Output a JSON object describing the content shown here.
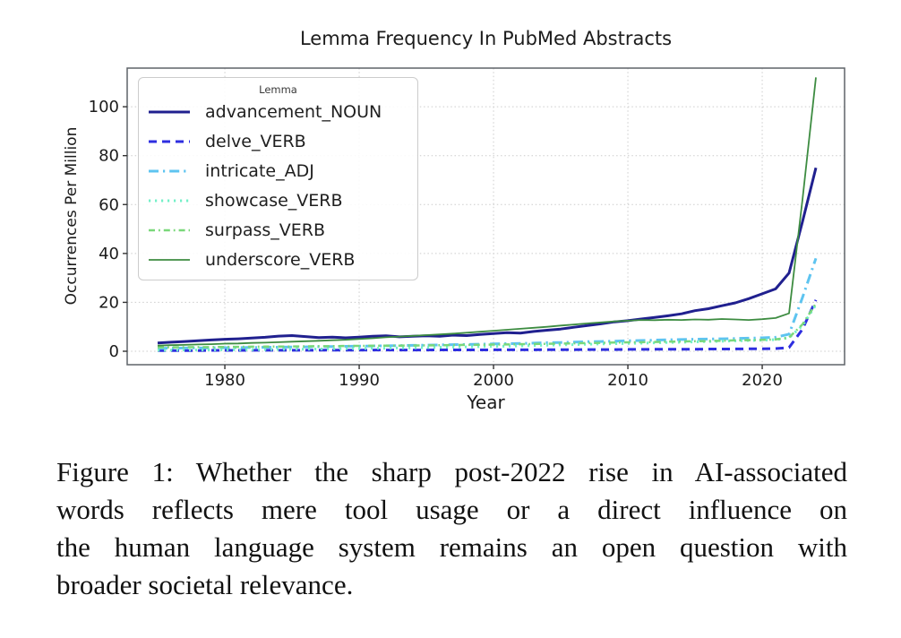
{
  "figure": {
    "caption_lines": [
      "Figure 1: Whether the sharp post-2022 rise in AI-associated",
      "words reflects mere tool usage or a direct influence on",
      "the human language system remains an open question with",
      "broader societal relevance."
    ]
  },
  "chart_data": {
    "type": "line",
    "title": "Lemma Frequency In PubMed Abstracts",
    "xlabel": "Year",
    "ylabel": "Occurrences Per Million",
    "legend_title": "Lemma",
    "legend_position": "upper left",
    "grid": true,
    "grid_style": "dotted",
    "xlim": [
      1972.73,
      2026.13
    ],
    "ylim": [
      -5.5,
      115.8
    ],
    "xticks": [
      "1980",
      "1990",
      "2000",
      "2010",
      "2020"
    ],
    "xtick_values": [
      1980,
      1990,
      2000,
      2010,
      2020
    ],
    "yticks": [
      "0",
      "20",
      "40",
      "60",
      "80",
      "100"
    ],
    "ytick_values": [
      0,
      20,
      40,
      60,
      80,
      100
    ],
    "x": [
      1975,
      1976,
      1977,
      1978,
      1979,
      1980,
      1981,
      1982,
      1983,
      1984,
      1985,
      1986,
      1987,
      1988,
      1989,
      1990,
      1991,
      1992,
      1993,
      1994,
      1995,
      1996,
      1997,
      1998,
      1999,
      2000,
      2001,
      2002,
      2003,
      2004,
      2005,
      2006,
      2007,
      2008,
      2009,
      2010,
      2011,
      2012,
      2013,
      2014,
      2015,
      2016,
      2017,
      2018,
      2019,
      2020,
      2021,
      2022,
      2023,
      2024
    ],
    "series": [
      {
        "name": "advancement_NOUN",
        "color": "#20208f",
        "style": "solid",
        "width": 3.0,
        "values": [
          3.4,
          3.7,
          4.0,
          4.3,
          4.6,
          4.9,
          5.1,
          5.4,
          5.7,
          6.2,
          6.4,
          6.0,
          5.6,
          5.8,
          5.5,
          5.8,
          6.1,
          6.3,
          5.9,
          6.1,
          6.3,
          6.1,
          6.6,
          6.4,
          6.9,
          7.2,
          7.6,
          7.4,
          8.1,
          8.6,
          9.1,
          9.8,
          10.5,
          11.2,
          12.0,
          12.5,
          13.2,
          13.8,
          14.5,
          15.3,
          16.6,
          17.4,
          18.6,
          19.8,
          21.5,
          23.5,
          25.5,
          32.0,
          53.0,
          75.0
        ]
      },
      {
        "name": "delve_VERB",
        "color": "#2e2ee0",
        "style": "dashed",
        "width": 3.0,
        "values": [
          0.3,
          0.3,
          0.3,
          0.3,
          0.35,
          0.35,
          0.35,
          0.4,
          0.4,
          0.4,
          0.4,
          0.4,
          0.45,
          0.45,
          0.45,
          0.45,
          0.5,
          0.5,
          0.5,
          0.5,
          0.5,
          0.55,
          0.55,
          0.55,
          0.55,
          0.6,
          0.6,
          0.6,
          0.6,
          0.65,
          0.65,
          0.65,
          0.7,
          0.7,
          0.7,
          0.75,
          0.75,
          0.8,
          0.8,
          0.85,
          0.85,
          0.9,
          0.9,
          0.95,
          1.0,
          1.0,
          1.1,
          1.5,
          9.0,
          21.0
        ]
      },
      {
        "name": "intricate_ADJ",
        "color": "#5ec4f0",
        "style": "dashdot",
        "width": 3.0,
        "values": [
          1.2,
          1.25,
          1.3,
          1.3,
          1.4,
          1.45,
          1.5,
          1.55,
          1.6,
          1.65,
          1.75,
          1.8,
          1.9,
          1.95,
          2.0,
          2.1,
          2.15,
          2.25,
          2.3,
          2.4,
          2.5,
          2.6,
          2.7,
          2.8,
          2.9,
          3.0,
          3.1,
          3.2,
          3.35,
          3.5,
          3.6,
          3.75,
          3.9,
          4.0,
          4.15,
          4.3,
          4.4,
          4.55,
          4.7,
          4.8,
          4.9,
          5.0,
          5.1,
          5.2,
          5.35,
          5.5,
          5.7,
          7.0,
          22.0,
          38.0
        ]
      },
      {
        "name": "showcase_VERB",
        "color": "#74f0c8",
        "style": "dotted",
        "width": 3.0,
        "values": [
          0.4,
          0.45,
          0.5,
          0.5,
          0.55,
          0.6,
          0.6,
          0.65,
          0.7,
          0.75,
          0.8,
          0.85,
          0.9,
          1.0,
          1.05,
          1.1,
          1.2,
          1.25,
          1.35,
          1.4,
          1.5,
          1.6,
          1.7,
          1.8,
          1.9,
          2.0,
          2.1,
          2.2,
          2.35,
          2.5,
          2.6,
          2.7,
          2.85,
          3.0,
          3.1,
          3.2,
          3.3,
          3.45,
          3.6,
          3.7,
          3.85,
          4.0,
          4.1,
          4.25,
          4.4,
          4.55,
          4.75,
          5.5,
          10.5,
          19.0
        ]
      },
      {
        "name": "surpass_VERB",
        "color": "#7ad87a",
        "style": "dashdot-small",
        "width": 2.5,
        "values": [
          1.6,
          1.6,
          1.65,
          1.7,
          1.7,
          1.75,
          1.8,
          1.85,
          1.9,
          1.9,
          1.95,
          2.0,
          2.05,
          2.1,
          2.15,
          2.2,
          2.25,
          2.3,
          2.3,
          2.35,
          2.4,
          2.45,
          2.55,
          2.6,
          2.65,
          2.75,
          2.8,
          2.9,
          2.95,
          3.05,
          3.15,
          3.25,
          3.35,
          3.45,
          3.55,
          3.65,
          3.7,
          3.8,
          3.9,
          4.0,
          4.1,
          4.2,
          4.3,
          4.45,
          4.55,
          4.65,
          4.85,
          5.6,
          11.0,
          19.5
        ]
      },
      {
        "name": "underscore_VERB",
        "color": "#3d8c41",
        "style": "solid",
        "width": 1.8,
        "values": [
          2.3,
          2.5,
          2.6,
          2.8,
          2.9,
          3.1,
          3.2,
          3.4,
          3.5,
          3.7,
          3.9,
          4.1,
          4.3,
          4.5,
          4.7,
          5.0,
          5.3,
          5.7,
          6.0,
          6.3,
          6.6,
          6.9,
          7.2,
          7.6,
          8.0,
          8.4,
          8.8,
          9.2,
          9.6,
          10.0,
          10.5,
          10.9,
          11.4,
          11.8,
          12.2,
          12.5,
          12.8,
          12.7,
          12.9,
          12.8,
          13.0,
          12.9,
          13.2,
          13.0,
          12.8,
          13.1,
          13.6,
          15.5,
          62.0,
          112.0
        ]
      }
    ],
    "colors": {
      "grid": "#cccccc",
      "plot_border": "#5f6368",
      "text": "#1c1c1c"
    }
  }
}
